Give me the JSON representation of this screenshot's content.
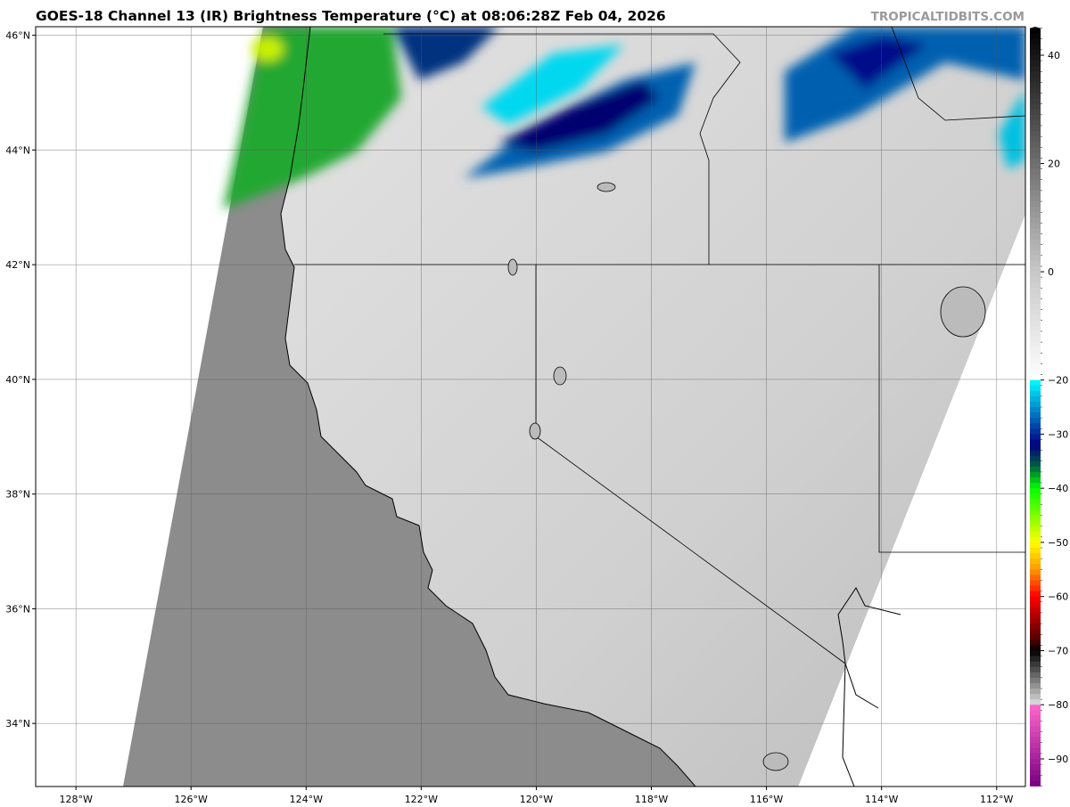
{
  "header": {
    "title": "GOES-18 Channel 13 (IR) Brightness Temperature (°C) at 08:06:28Z Feb 04, 2026",
    "credit": "TROPICALTIDBITS.COM"
  },
  "map": {
    "projection": "equirectangular",
    "extent_lon": [
      -128.7,
      -111.5
    ],
    "extent_lat": [
      32.9,
      46.15
    ],
    "lon_ticks": [
      {
        "v": -128,
        "label": "128°W"
      },
      {
        "v": -126,
        "label": "126°W"
      },
      {
        "v": -124,
        "label": "124°W"
      },
      {
        "v": -122,
        "label": "122°W"
      },
      {
        "v": -120,
        "label": "120°W"
      },
      {
        "v": -118,
        "label": "118°W"
      },
      {
        "v": -116,
        "label": "116°W"
      },
      {
        "v": -114,
        "label": "114°W"
      },
      {
        "v": -112,
        "label": "112°W"
      }
    ],
    "lat_ticks": [
      {
        "v": 34,
        "label": "34°N"
      },
      {
        "v": 36,
        "label": "36°N"
      },
      {
        "v": 38,
        "label": "38°N"
      },
      {
        "v": 40,
        "label": "40°N"
      },
      {
        "v": 42,
        "label": "42°N"
      },
      {
        "v": 44,
        "label": "44°N"
      },
      {
        "v": 46,
        "label": "46°N"
      }
    ],
    "grid": true
  },
  "colorbar": {
    "range": [
      -95,
      45
    ],
    "ticks": [
      {
        "v": 40,
        "label": "40"
      },
      {
        "v": 20,
        "label": "20"
      },
      {
        "v": 0,
        "label": "0"
      },
      {
        "v": -20,
        "label": "−20"
      },
      {
        "v": -30,
        "label": "−30"
      },
      {
        "v": -40,
        "label": "−40"
      },
      {
        "v": -50,
        "label": "−50"
      },
      {
        "v": -60,
        "label": "−60"
      },
      {
        "v": -70,
        "label": "−70"
      },
      {
        "v": -80,
        "label": "−80"
      },
      {
        "v": -90,
        "label": "−90"
      }
    ],
    "stops": [
      {
        "v": 45,
        "c": "#000000"
      },
      {
        "v": 0,
        "c": "#c8c8c8"
      },
      {
        "v": -20,
        "c": "#ffffff"
      },
      {
        "v": -20,
        "c": "#00ffff"
      },
      {
        "v": -28,
        "c": "#0050b0"
      },
      {
        "v": -32,
        "c": "#000080"
      },
      {
        "v": -36,
        "c": "#006040"
      },
      {
        "v": -40,
        "c": "#00ff00"
      },
      {
        "v": -50,
        "c": "#ffff00"
      },
      {
        "v": -55,
        "c": "#ff9900"
      },
      {
        "v": -60,
        "c": "#ff0000"
      },
      {
        "v": -68,
        "c": "#500000"
      },
      {
        "v": -70,
        "c": "#000000"
      },
      {
        "v": -80,
        "c": "#e0e0e0"
      },
      {
        "v": -80,
        "c": "#ff66cc"
      },
      {
        "v": -95,
        "c": "#7a0080"
      }
    ]
  }
}
